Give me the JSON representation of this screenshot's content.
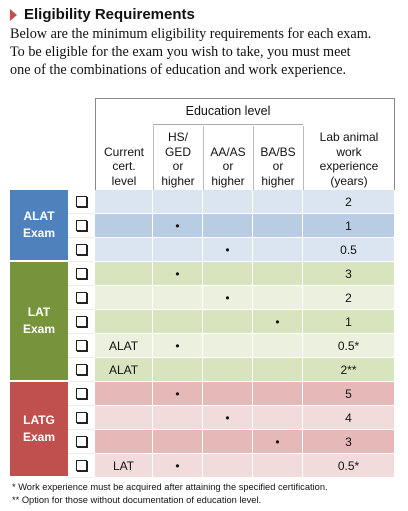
{
  "header": {
    "title": "Eligibility Requirements",
    "intro": [
      "Below are the minimum eligibility requirements for each exam.",
      "To be eligible for the exam you wish to take, you must meet",
      "one of the combinations of education and work experience."
    ]
  },
  "table": {
    "group_header": "Education level",
    "columns": [
      [
        "Current",
        "cert.",
        "level"
      ],
      [
        "HS/",
        "GED",
        "or",
        "higher"
      ],
      [
        "AA/AS",
        "or",
        "higher"
      ],
      [
        "BA/BS",
        "or",
        "higher"
      ],
      [
        "Lab animal",
        "work",
        "experience",
        "(years)"
      ]
    ],
    "groups": [
      {
        "label": "ALAT Exam",
        "rows": [
          [
            null,
            null,
            null,
            null,
            "2"
          ],
          [
            null,
            "•",
            null,
            null,
            "1"
          ],
          [
            null,
            null,
            "•",
            null,
            "0.5"
          ]
        ]
      },
      {
        "label": "LAT Exam",
        "rows": [
          [
            null,
            "•",
            null,
            null,
            "3"
          ],
          [
            null,
            null,
            "•",
            null,
            "2"
          ],
          [
            null,
            null,
            null,
            "•",
            "1"
          ],
          [
            "ALAT",
            "•",
            null,
            null,
            "0.5*"
          ],
          [
            "ALAT",
            null,
            null,
            null,
            "2**"
          ]
        ]
      },
      {
        "label": "LATG Exam",
        "rows": [
          [
            null,
            "•",
            null,
            null,
            "5"
          ],
          [
            null,
            null,
            "•",
            null,
            "4"
          ],
          [
            null,
            null,
            null,
            "•",
            "3"
          ],
          [
            "LAT",
            "•",
            null,
            null,
            "0.5*"
          ]
        ]
      }
    ]
  },
  "footnotes": [
    "* Work experience must be acquired after attaining the specified certification.",
    "** Option for those without documentation of education level."
  ]
}
